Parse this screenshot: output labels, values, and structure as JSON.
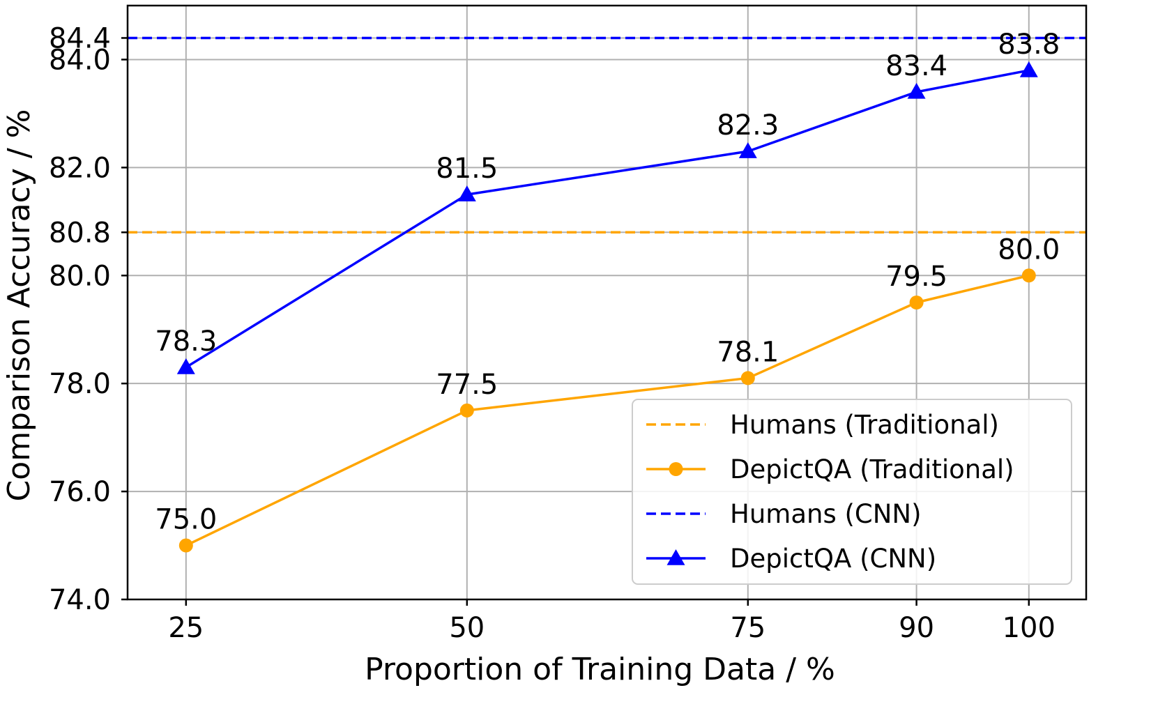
{
  "chart_data": {
    "type": "line",
    "title": "",
    "xlabel": "Proportion of Training Data / %",
    "ylabel": "Comparison Accuracy / %",
    "x_categories": [
      "25",
      "50",
      "75",
      "90",
      "100"
    ],
    "x_category_positions": [
      25,
      50,
      75,
      90,
      100
    ],
    "xlim": [
      19.8,
      105.1
    ],
    "y_ticks": [
      "74.0",
      "76.0",
      "78.0",
      "80.0",
      "80.8",
      "82.0",
      "84.0",
      "84.4"
    ],
    "y_tick_values": [
      74.0,
      76.0,
      78.0,
      80.0,
      80.8,
      82.0,
      84.0,
      84.4
    ],
    "ylim": [
      74.0,
      85.0
    ],
    "grid": true,
    "legend_position": "lower-right",
    "series": [
      {
        "name": "Humans (Traditional)",
        "style": "dashed",
        "marker": "none",
        "color": "#FFA500",
        "constant": 80.8
      },
      {
        "name": "DepictQA (Traditional)",
        "style": "solid",
        "marker": "circle",
        "color": "#FFA500",
        "x": [
          25,
          50,
          75,
          90,
          100
        ],
        "values": [
          75.0,
          77.5,
          78.1,
          79.5,
          80.0
        ],
        "labels": [
          "75.0",
          "77.5",
          "78.1",
          "79.5",
          "80.0"
        ]
      },
      {
        "name": "Humans (CNN)",
        "style": "dashed",
        "marker": "none",
        "color": "#0000FF",
        "constant": 84.4
      },
      {
        "name": "DepictQA (CNN)",
        "style": "solid",
        "marker": "triangle",
        "color": "#0000FF",
        "x": [
          25,
          50,
          75,
          90,
          100
        ],
        "values": [
          78.3,
          81.5,
          82.3,
          83.4,
          83.8
        ],
        "labels": [
          "78.3",
          "81.5",
          "82.3",
          "83.4",
          "83.8"
        ]
      }
    ]
  }
}
